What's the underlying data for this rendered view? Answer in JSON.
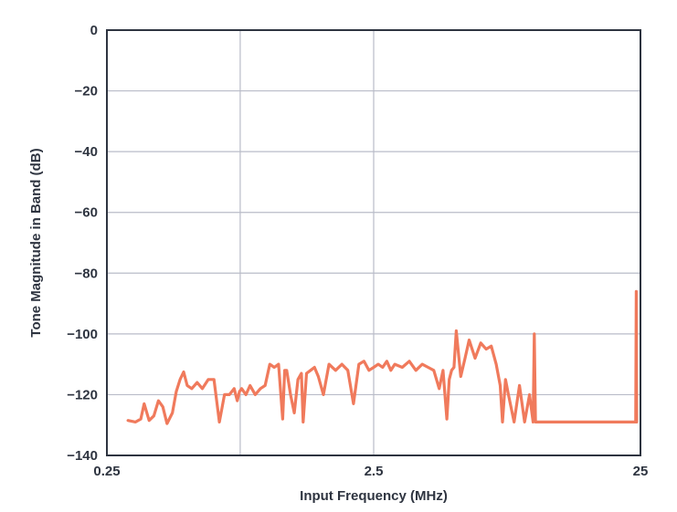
{
  "chart_data": {
    "type": "line",
    "title": "",
    "xlabel": "Input Frequency (MHz)",
    "ylabel": "Tone Magnitude in Band (dB)",
    "x_scale": "log",
    "xlim": [
      0.25,
      25
    ],
    "ylim": [
      -140,
      0
    ],
    "x_ticks": [
      0.25,
      2.5,
      25
    ],
    "x_tick_labels": [
      "0.25",
      "2.5",
      "25"
    ],
    "x_gridlines": [
      0.79,
      2.5
    ],
    "y_ticks": [
      0,
      -20,
      -40,
      -60,
      -80,
      -100,
      -120,
      -140
    ],
    "y_tick_labels": [
      "0",
      "−20",
      "−40",
      "−60",
      "−80",
      "−100",
      "−120",
      "−140"
    ],
    "grid": true,
    "colors": {
      "line": "#f07a5c",
      "grid": "#b9bcc8",
      "axis": "#2e3440"
    },
    "series": [
      {
        "x": [
          0.3,
          0.32,
          0.335,
          0.345,
          0.36,
          0.375,
          0.39,
          0.405,
          0.42,
          0.44,
          0.455,
          0.47,
          0.485,
          0.5,
          0.52,
          0.545,
          0.57,
          0.6,
          0.63,
          0.66,
          0.69,
          0.72,
          0.75,
          0.77,
          0.785,
          0.8,
          0.83,
          0.86,
          0.9,
          0.94,
          0.98,
          1.02,
          1.06,
          1.1,
          1.14,
          1.16,
          1.18,
          1.22,
          1.26,
          1.3,
          1.34,
          1.36,
          1.4,
          1.45,
          1.5,
          1.55,
          1.62,
          1.7,
          1.8,
          1.9,
          2.0,
          2.1,
          2.2,
          2.3,
          2.4,
          2.5,
          2.6,
          2.7,
          2.8,
          2.9,
          3.0,
          3.2,
          3.4,
          3.6,
          3.8,
          4.0,
          4.2,
          4.4,
          4.55,
          4.7,
          4.8,
          4.9,
          5.0,
          5.1,
          5.3,
          5.5,
          5.7,
          6.0,
          6.3,
          6.6,
          6.9,
          7.2,
          7.45,
          7.6,
          7.8,
          8.0,
          8.4,
          8.8,
          9.2,
          9.6,
          9.9,
          10.0,
          10.1,
          10.3,
          10.6,
          11.0,
          11.5,
          12.2,
          13.0,
          14.0,
          16.0,
          18.0,
          20.0,
          22.0,
          23.5,
          24.0,
          24.1,
          24.2
        ],
        "y": [
          -128.5,
          -129,
          -128,
          -123,
          -128.5,
          -127,
          -122,
          -124,
          -129.5,
          -126,
          -119,
          -115,
          -112.5,
          -117,
          -118,
          -116,
          -118,
          -115,
          -115,
          -129,
          -120,
          -120,
          -118,
          -122,
          -119,
          -118,
          -120,
          -117,
          -120,
          -118,
          -117,
          -110,
          -111,
          -110,
          -128,
          -112,
          -112,
          -120,
          -126,
          -115,
          -113,
          -129,
          -113,
          -112,
          -111,
          -114,
          -120,
          -110,
          -112,
          -110,
          -112,
          -123,
          -110,
          -109,
          -112,
          -111,
          -110,
          -111,
          -109,
          -112,
          -110,
          -111,
          -109,
          -112,
          -110,
          -111,
          -112,
          -118,
          -112,
          -128,
          -115,
          -112,
          -111,
          -99,
          -114,
          -108,
          -102,
          -108,
          -103,
          -105,
          -104,
          -110,
          -117,
          -129,
          -115,
          -120,
          -129,
          -117,
          -129,
          -120,
          -129,
          -100,
          -129,
          -129,
          -129,
          -129,
          -129,
          -129,
          -129,
          -129,
          -129,
          -129,
          -129,
          -129,
          -129,
          -129,
          -86,
          -129
        ]
      }
    ]
  }
}
